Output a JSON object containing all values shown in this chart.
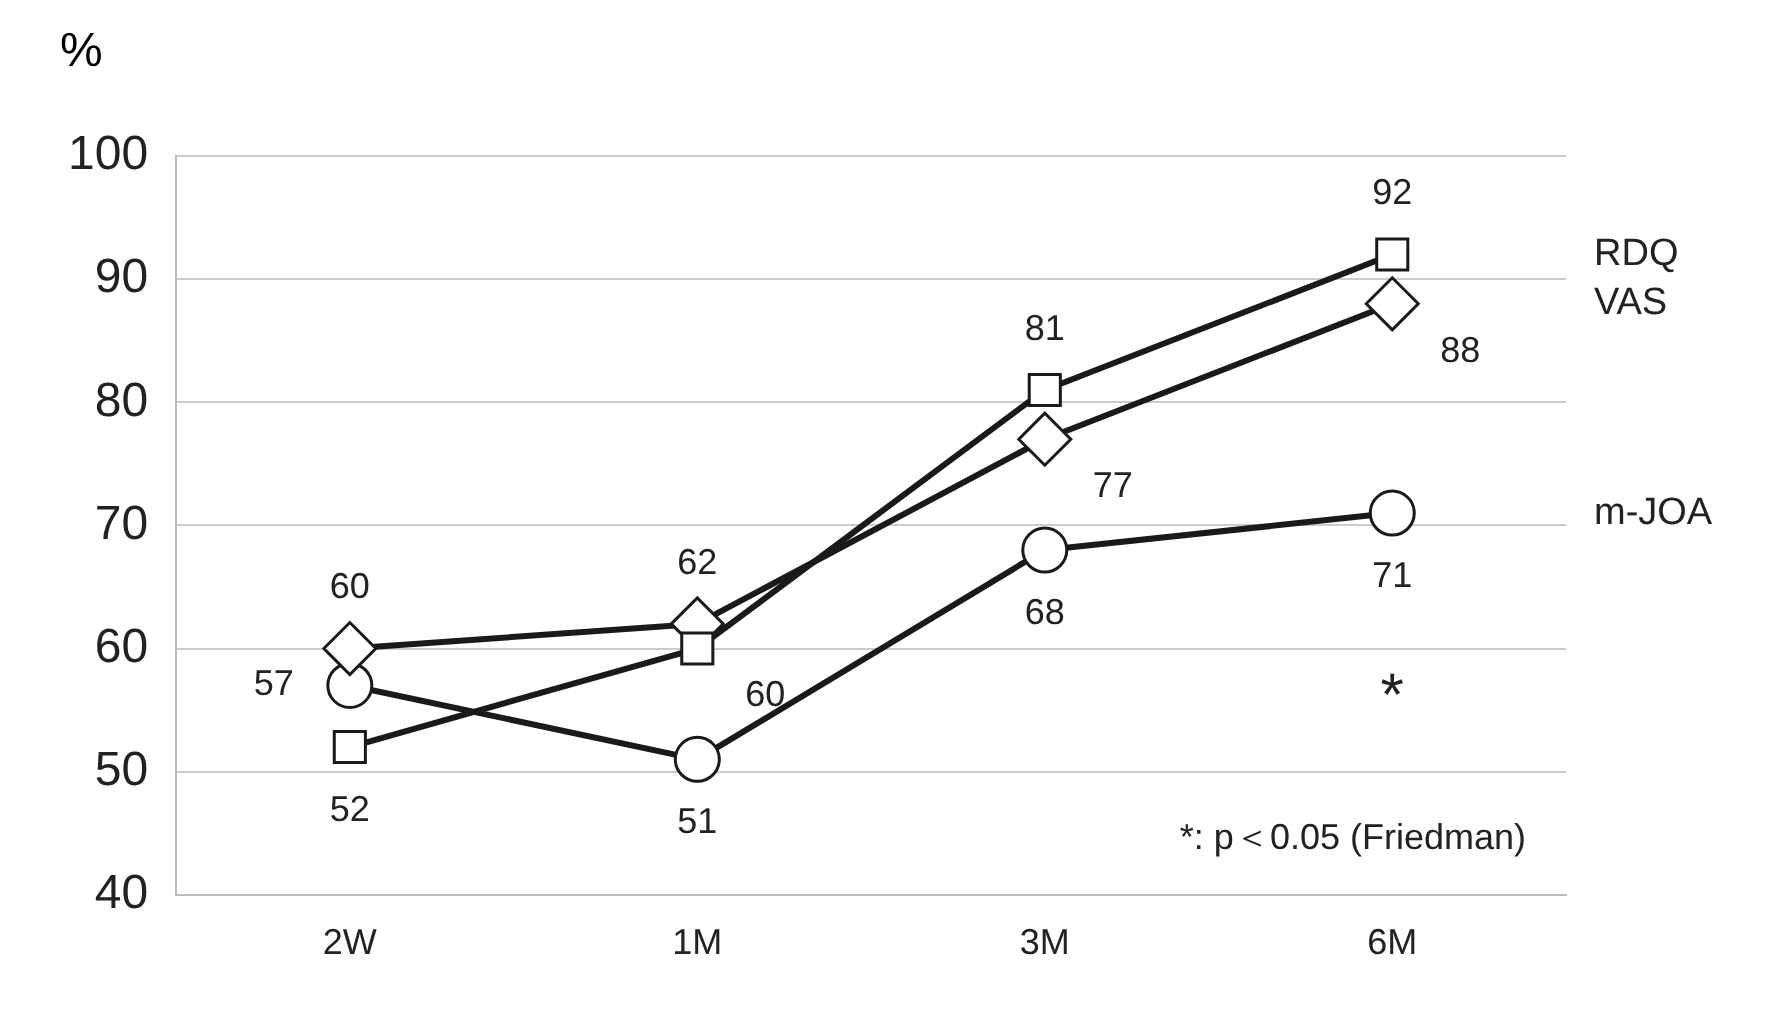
{
  "chart_data": {
    "type": "line",
    "ylabel": "%",
    "categories": [
      "2W",
      "1M",
      "3M",
      "6M"
    ],
    "series": [
      {
        "name": "RDQ",
        "color": "#1a1a1a",
        "marker": "square",
        "values": [
          52,
          60,
          81,
          92
        ]
      },
      {
        "name": "VAS",
        "color": "#1a1a1a",
        "marker": "diamond",
        "values": [
          60,
          62,
          77,
          88
        ]
      },
      {
        "name": "m-JOA",
        "color": "#1a1a1a",
        "marker": "circle",
        "values": [
          57,
          51,
          68,
          71
        ]
      }
    ],
    "ylim": [
      40,
      100
    ],
    "yticks": [
      40,
      50,
      60,
      70,
      80,
      90,
      100
    ],
    "grid": "y",
    "legend": false,
    "data_labels": true,
    "annotations": [
      "*",
      "*: p＜0.05 (Friedman)"
    ]
  }
}
